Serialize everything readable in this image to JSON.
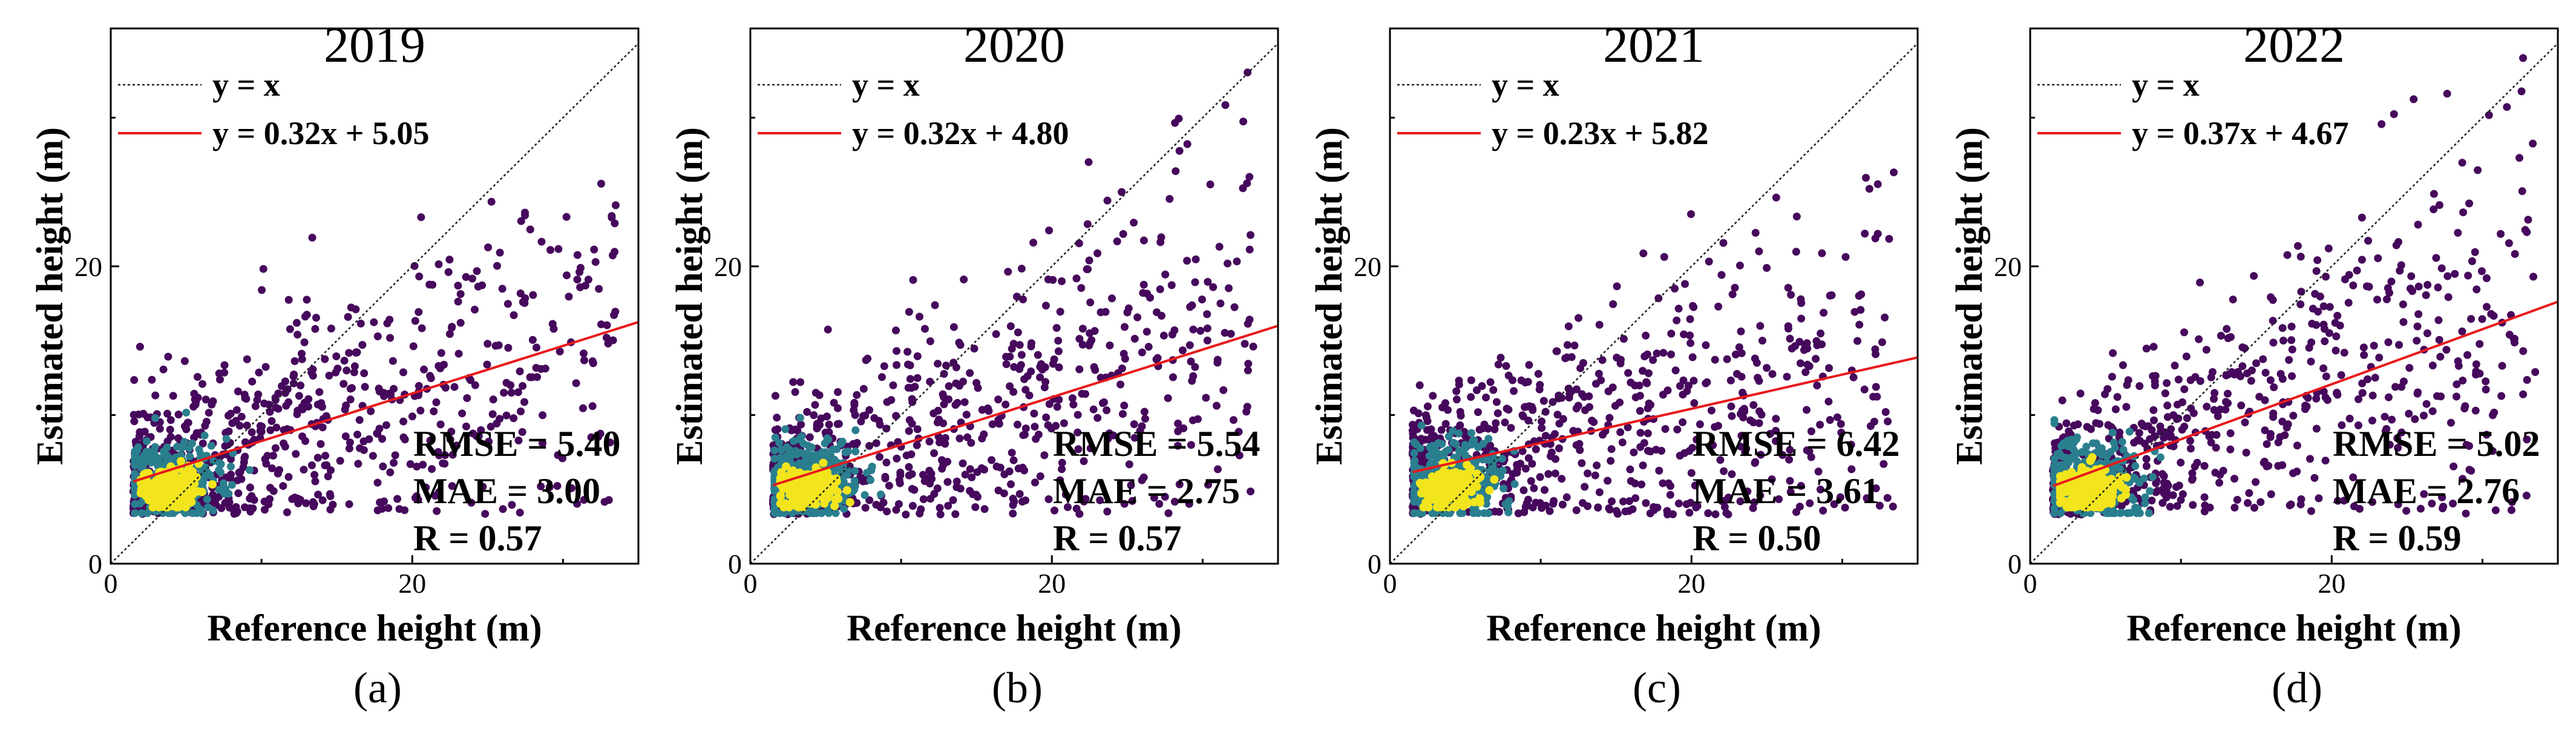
{
  "chart_data": [
    {
      "type": "scatter",
      "title": "2019",
      "panel_label": "(a)",
      "xlabel": "Reference height (m)",
      "ylabel": "Estimated height (m)",
      "xlim": [
        0,
        35
      ],
      "ylim": [
        0,
        36
      ],
      "xticks": [
        0,
        20
      ],
      "yticks": [
        0,
        20
      ],
      "legend": [
        {
          "label": "y = x",
          "style": "dashed",
          "color": "#222222"
        },
        {
          "label": "y = 0.32x + 5.05",
          "style": "solid",
          "color": "#e8191c"
        }
      ],
      "fit": {
        "slope": 0.32,
        "intercept": 5.05
      },
      "stats": [
        "RMSE = 5.40",
        "MAE = 3.00",
        "R = 0.57"
      ],
      "seed": 11
    },
    {
      "type": "scatter",
      "title": "2020",
      "panel_label": "(b)",
      "xlabel": "Reference height (m)",
      "ylabel": "Estimated height (m)",
      "xlim": [
        0,
        35
      ],
      "ylim": [
        0,
        36
      ],
      "xticks": [
        0,
        20
      ],
      "yticks": [
        0,
        20
      ],
      "legend": [
        {
          "label": "y = x",
          "style": "dashed",
          "color": "#222222"
        },
        {
          "label": "y = 0.32x + 4.80",
          "style": "solid",
          "color": "#e8191c"
        }
      ],
      "fit": {
        "slope": 0.32,
        "intercept": 4.8
      },
      "stats": [
        "RMSE = 5.54",
        "MAE = 2.75",
        "R = 0.57"
      ],
      "seed": 23
    },
    {
      "type": "scatter",
      "title": "2021",
      "panel_label": "(c)",
      "xlabel": "Reference height (m)",
      "ylabel": "Estimated height (m)",
      "xlim": [
        0,
        35
      ],
      "ylim": [
        0,
        36
      ],
      "xticks": [
        0,
        20
      ],
      "yticks": [
        0,
        20
      ],
      "legend": [
        {
          "label": "y = x",
          "style": "dashed",
          "color": "#222222"
        },
        {
          "label": "y = 0.23x + 5.82",
          "style": "solid",
          "color": "#e8191c"
        }
      ],
      "fit": {
        "slope": 0.23,
        "intercept": 5.82
      },
      "stats": [
        "RMSE = 6.42",
        "MAE = 3.61",
        "R = 0.50"
      ],
      "seed": 37
    },
    {
      "type": "scatter",
      "title": "2022",
      "panel_label": "(d)",
      "xlabel": "Reference height (m)",
      "ylabel": "Estimated height (m)",
      "xlim": [
        0,
        35
      ],
      "ylim": [
        0,
        36
      ],
      "xticks": [
        0,
        20
      ],
      "yticks": [
        0,
        20
      ],
      "legend": [
        {
          "label": "y = x",
          "style": "dashed",
          "color": "#222222"
        },
        {
          "label": "y = 0.37x + 4.67",
          "style": "solid",
          "color": "#e8191c"
        }
      ],
      "fit": {
        "slope": 0.37,
        "intercept": 4.67
      },
      "stats": [
        "RMSE = 5.02",
        "MAE = 2.76",
        "R = 0.59"
      ],
      "seed": 53
    }
  ],
  "colors": {
    "identity": "#222222",
    "fit": "#e8191c",
    "density_low": "#46085c",
    "density_mid": "#2a7f8e",
    "density_high": "#f2e51d"
  }
}
